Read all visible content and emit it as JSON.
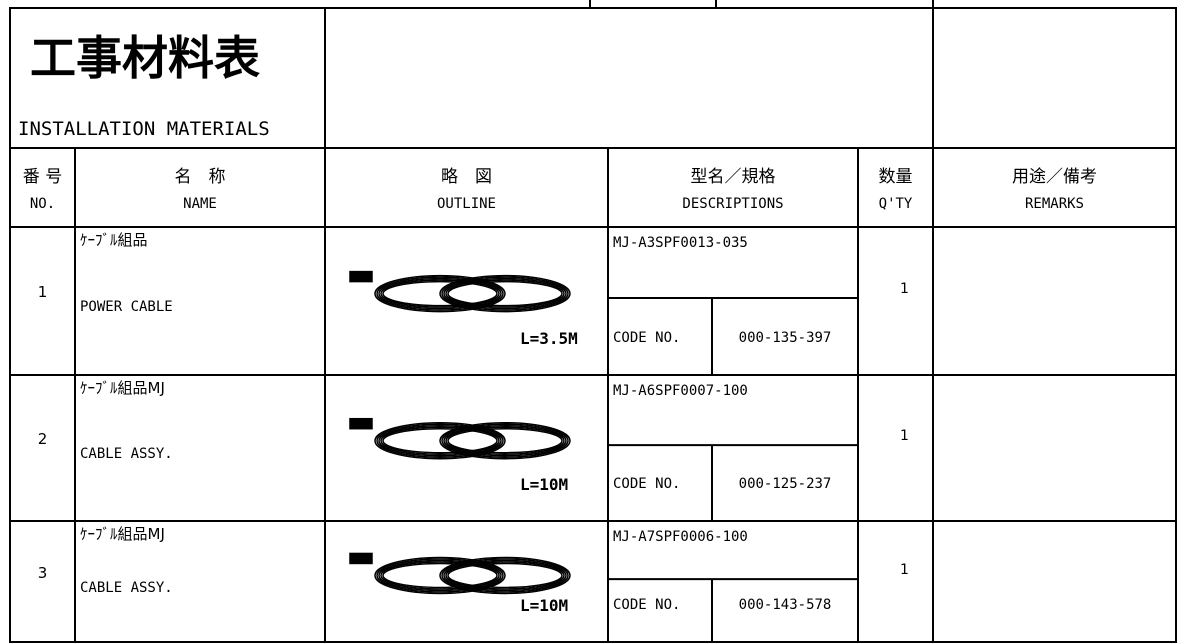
{
  "header": {
    "title": "工事材料表",
    "subtitle": "INSTALLATION MATERIALS"
  },
  "table": {
    "columns": [
      {
        "ja": "番 号",
        "en": "NO."
      },
      {
        "ja": "名　称",
        "en": "NAME"
      },
      {
        "ja": "略　図",
        "en": "OUTLINE"
      },
      {
        "ja": "型名／規格",
        "en": "DESCRIPTIONS"
      },
      {
        "ja": "数量",
        "en": "Q'TY"
      },
      {
        "ja": "用途／備考",
        "en": "REMARKS"
      }
    ],
    "rows": [
      {
        "no": "1",
        "name_ja": "ｹｰﾌﾞﾙ組品",
        "name_en": "POWER CABLE",
        "length": "L=3.5M",
        "model": "MJ-A3SPF0013-035",
        "code_label": "CODE NO.",
        "code": "000-135-397",
        "qty": "1"
      },
      {
        "no": "2",
        "name_ja": "ｹｰﾌﾞﾙ組品MJ",
        "name_en": "CABLE ASSY.",
        "length": "L=10M",
        "model": "MJ-A6SPF0007-100",
        "code_label": "CODE NO.",
        "code": "000-125-237",
        "qty": "1"
      },
      {
        "no": "3",
        "name_ja": "ｹｰﾌﾞﾙ組品MJ",
        "name_en": "CABLE ASSY.",
        "length": "L=10M",
        "model": "MJ-A7SPF0006-100",
        "code_label": "CODE NO.",
        "code": "000-143-578",
        "qty": "1"
      }
    ]
  }
}
